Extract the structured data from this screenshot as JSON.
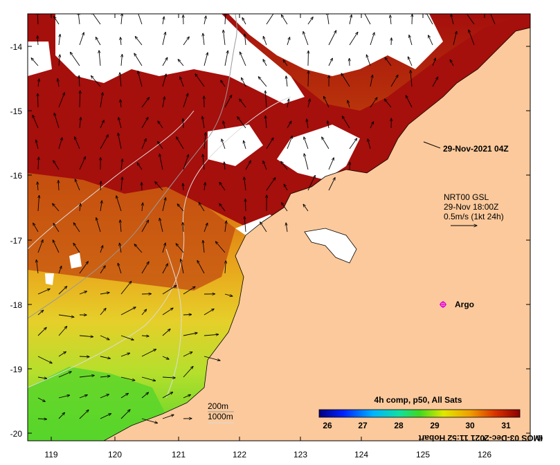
{
  "map": {
    "lon_ticks": [
      "119",
      "120",
      "121",
      "122",
      "123",
      "124",
      "125",
      "126"
    ],
    "lat_ticks": [
      "-14",
      "-15",
      "-16",
      "-17",
      "-18",
      "-19",
      "-20"
    ],
    "timestamp": "29-Nov-2021 04Z",
    "current_legend": {
      "line1": "NRT00 GSL",
      "line2": "29-Nov 18:00Z",
      "line3": "0.5m/s (1kt 24h)"
    },
    "argo_label": "Argo",
    "argo_marker_color": "#e000e0",
    "depth_legend": {
      "contour_200": "200m",
      "contour_1000": "1000m"
    },
    "colorbar": {
      "title": "4h comp, p50, All Sats",
      "ticks": [
        "26",
        "27",
        "28",
        "29",
        "30",
        "31"
      ]
    },
    "credit": "IMOS 03-Dec-2021 11:52 Hobart",
    "colors": {
      "land": "#fbc99b",
      "cloud": "#ffffff",
      "warmest": "#a50f0c",
      "warm": "#c7500a",
      "mid": "#e79a16",
      "cool": "#d8dc2a",
      "coolest": "#4fd42a"
    }
  }
}
